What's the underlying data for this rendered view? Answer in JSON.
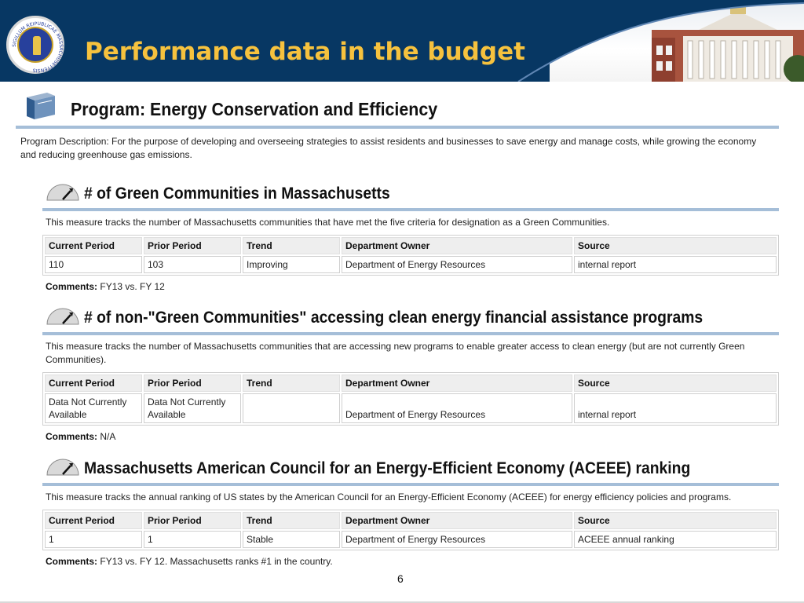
{
  "banner": {
    "title": "Performance data in the budget",
    "seal_text": "SIGILLUM REIPUBLICAE MASSACHUSETTENSIS",
    "colors": {
      "background": "#073763",
      "title": "#f6c23e"
    }
  },
  "program": {
    "title": "Program: Energy Conservation and Efficiency",
    "description": "Program Description: For the purpose of developing and overseeing strategies to assist residents and businesses to save energy and manage costs, while growing the economy and reducing greenhouse gas emissions."
  },
  "table_headers": [
    "Current Period",
    "Prior Period",
    "Trend",
    "Department Owner",
    "Source"
  ],
  "comments_label": "Comments:",
  "measures": [
    {
      "title": "# of Green Communities in Massachusetts",
      "description": "This measure tracks the number of Massachusetts communities that have met the five criteria for designation as a Green Communities.",
      "row": [
        "110",
        "103",
        "Improving",
        "Department of Energy Resources",
        "internal report"
      ],
      "comments": "FY13 vs. FY 12"
    },
    {
      "title": "# of non-\"Green Communities\" accessing clean energy financial assistance programs",
      "description": "This measure tracks the number of Massachusetts communities that are accessing new programs to enable greater access to clean energy (but are not currently Green Communities).",
      "row": [
        "Data Not Currently Available",
        "Data Not Currently Available",
        "",
        "Department of Energy Resources",
        "internal report"
      ],
      "comments": "N/A"
    },
    {
      "title": "Massachusetts American Council for an Energy-Efficient Economy (ACEEE) ranking",
      "description": "This measure tracks the annual ranking of US states by the American Council for an Energy-Efficient Economy (ACEEE) for energy efficiency policies and programs.",
      "row": [
        "1",
        "1",
        "Stable",
        "Department of Energy Resources",
        "ACEEE annual ranking"
      ],
      "comments": "FY13 vs. FY 12. Massachusetts ranks #1 in the country."
    }
  ],
  "page_number": "6",
  "icons": {
    "program": "book-icon",
    "measure": "gauge-icon"
  }
}
